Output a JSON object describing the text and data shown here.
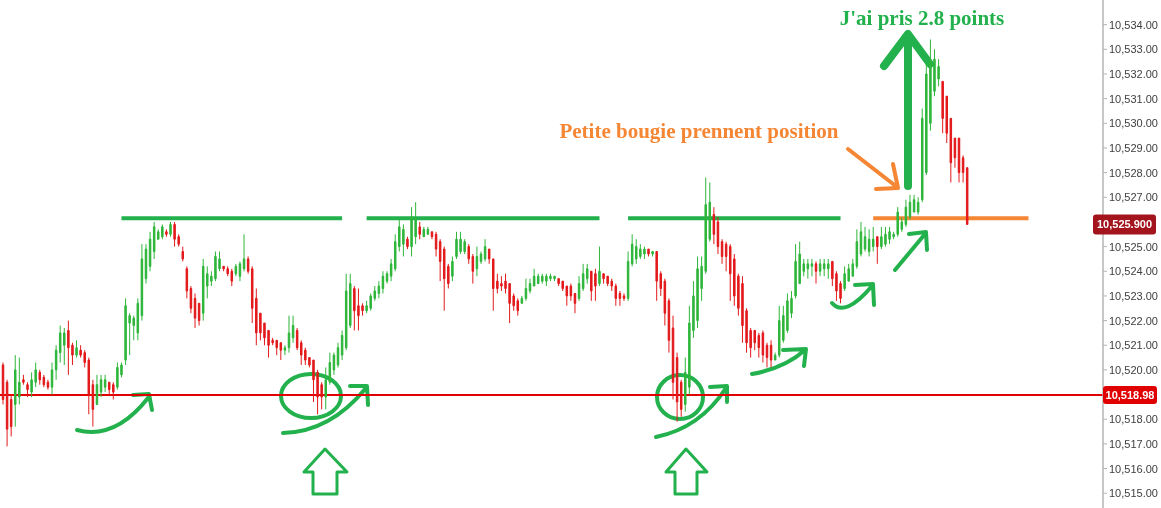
{
  "chart_data": {
    "type": "candlestick",
    "categories": [
      null,
      null,
      null,
      null,
      null,
      null,
      null,
      null,
      null,
      null,
      null,
      null,
      null,
      null,
      null,
      null,
      null,
      null,
      null,
      null,
      null,
      null,
      null,
      null,
      null,
      null,
      null,
      null,
      null,
      null,
      null,
      null,
      null,
      null,
      null,
      null,
      null,
      null,
      null,
      null,
      null,
      null,
      null,
      null,
      null,
      null,
      null,
      null,
      null,
      null,
      null,
      null,
      null,
      null,
      null,
      null,
      null,
      null,
      null,
      null,
      null,
      null,
      null,
      null,
      null,
      null,
      null,
      null,
      null,
      null,
      null,
      null,
      null,
      null,
      null,
      null,
      null,
      null,
      null,
      null,
      null,
      null,
      null,
      null,
      null,
      null,
      null,
      null,
      null,
      null,
      null,
      null,
      null,
      null,
      null,
      null,
      null,
      null,
      null,
      null,
      null,
      null,
      null,
      null,
      null,
      null,
      null,
      null,
      null,
      null,
      null,
      null,
      null,
      null,
      null,
      null,
      null,
      null,
      null,
      null,
      null,
      null,
      null,
      null,
      null,
      null,
      null,
      null,
      null,
      null,
      null,
      null,
      null,
      null,
      null,
      null,
      null,
      null,
      null,
      null,
      null,
      null,
      null,
      null,
      null,
      null,
      null,
      null,
      null,
      null,
      null,
      null,
      null,
      null,
      null,
      null,
      null,
      null,
      null,
      null,
      null,
      null,
      null,
      null,
      null,
      null,
      null,
      null,
      null,
      null,
      null,
      null,
      null,
      null,
      null,
      null,
      null,
      null,
      null,
      null,
      null,
      null,
      null,
      null,
      null,
      null,
      null,
      null,
      null,
      null,
      null,
      null,
      null,
      null,
      null,
      null,
      null,
      null,
      null,
      null,
      null,
      null,
      null,
      null,
      null,
      null,
      null,
      null,
      null,
      null,
      null,
      null,
      null,
      null,
      null,
      null,
      null,
      null,
      null,
      null,
      null,
      null,
      null,
      null,
      null,
      null,
      null,
      null,
      null,
      null,
      null,
      null,
      null,
      null,
      null,
      null,
      null,
      null,
      null,
      null,
      null,
      null,
      null,
      null,
      null,
      null,
      null,
      null,
      null,
      null,
      null,
      null,
      null,
      null,
      null,
      null,
      null,
      null,
      null,
      null,
      null,
      null,
      null,
      null,
      null,
      null,
      null,
      null,
      null,
      null
    ],
    "ohlc": [
      [
        10520.2,
        10520.3,
        10518.6,
        10518.8
      ],
      [
        10519.5,
        10519.6,
        10516.9,
        10517.6
      ],
      [
        10518.8,
        10519.0,
        10517.3,
        10517.7
      ],
      [
        10518.6,
        10520.6,
        10517.7,
        10520.0
      ],
      [
        10518.9,
        10520.5,
        10518.6,
        10519.5
      ],
      [
        10519.6,
        10519.8,
        10519.4,
        10519.5
      ],
      [
        10519.4,
        10519.5,
        10518.9,
        10519.2
      ],
      [
        10519.1,
        10519.9,
        10518.9,
        10519.6
      ],
      [
        10519.5,
        10520.3,
        10519.3,
        10520.0
      ],
      [
        10519.9,
        10520.0,
        10519.4,
        10519.6
      ],
      [
        10519.7,
        10519.8,
        10519.3,
        10519.4
      ],
      [
        10519.5,
        10519.6,
        10519.2,
        10519.3
      ],
      [
        10519.3,
        10520.3,
        10519.0,
        10520.0
      ],
      [
        10520.0,
        10521.0,
        10519.6,
        10520.8
      ],
      [
        10520.7,
        10521.8,
        10520.3,
        10521.5
      ],
      [
        10521.0,
        10521.7,
        10520.2,
        10521.5
      ],
      [
        10521.6,
        10522.0,
        10519.8,
        10520.9
      ],
      [
        10521.0,
        10521.1,
        10520.2,
        10520.6
      ],
      [
        10520.6,
        10521.2,
        10520.5,
        10520.9
      ],
      [
        10520.8,
        10521.0,
        10520.5,
        10520.6
      ],
      [
        10520.7,
        10520.8,
        10520.1,
        10520.3
      ],
      [
        10520.4,
        10520.5,
        10518.2,
        10519.0
      ],
      [
        10519.4,
        10519.6,
        10517.7,
        10518.4
      ],
      [
        10518.6,
        10519.8,
        10518.6,
        10519.4
      ],
      [
        10519.1,
        10519.8,
        10518.9,
        10519.6
      ],
      [
        10519.3,
        10519.8,
        10519.1,
        10519.6
      ],
      [
        10519.5,
        10519.5,
        10519.0,
        10519.2
      ],
      [
        10519.4,
        10519.5,
        10518.8,
        10519.1
      ],
      [
        10519.3,
        10520.3,
        10519.2,
        10520.1
      ],
      [
        10519.8,
        10520.3,
        10519.7,
        10520.2
      ],
      [
        10520.4,
        10522.9,
        10520.2,
        10522.6
      ],
      [
        10521.9,
        10522.3,
        10520.6,
        10522.2
      ],
      [
        10521.8,
        10522.2,
        10521.2,
        10522.1
      ],
      [
        10521.5,
        10522.9,
        10521.2,
        10522.7
      ],
      [
        10522.2,
        10525.1,
        10522.0,
        10524.5
      ],
      [
        10523.7,
        10525.1,
        10523.5,
        10524.9
      ],
      [
        10524.2,
        10525.6,
        10524.0,
        10525.3
      ],
      [
        10524.8,
        10526.0,
        10524.5,
        10525.8
      ],
      [
        10525.3,
        10525.7,
        10525.3,
        10525.6
      ],
      [
        10525.4,
        10525.9,
        10525.3,
        10525.8
      ],
      [
        10525.6,
        10525.7,
        10525.4,
        10525.5
      ],
      [
        10525.5,
        10526.0,
        10525.4,
        10525.9
      ],
      [
        10525.9,
        10526.0,
        10525.0,
        10525.3
      ],
      [
        10525.4,
        10525.5,
        10525.0,
        10525.1
      ],
      [
        10524.8,
        10525.0,
        10524.4,
        10524.5
      ],
      [
        10524.1,
        10524.2,
        10522.9,
        10523.2
      ],
      [
        10523.3,
        10523.4,
        10522.3,
        10522.5
      ],
      [
        10522.9,
        10523.1,
        10521.7,
        10522.1
      ],
      [
        10522.7,
        10522.7,
        10521.8,
        10522.0
      ],
      [
        10522.3,
        10524.5,
        10522.0,
        10524.2
      ],
      [
        10523.4,
        10524.2,
        10522.9,
        10523.9
      ],
      [
        10523.6,
        10524.0,
        10523.4,
        10523.8
      ],
      [
        10523.7,
        10524.8,
        10523.6,
        10524.6
      ],
      [
        10524.1,
        10524.8,
        10524.0,
        10524.5
      ],
      [
        10524.2,
        10524.2,
        10524.0,
        10524.1
      ],
      [
        10524.1,
        10524.2,
        10523.8,
        10523.9
      ],
      [
        10524.0,
        10524.1,
        10523.4,
        10523.6
      ],
      [
        10523.9,
        10524.3,
        10523.8,
        10524.2
      ],
      [
        10523.8,
        10524.4,
        10523.6,
        10524.3
      ],
      [
        10524.1,
        10525.5,
        10524.0,
        10524.5
      ],
      [
        10524.5,
        10524.6,
        10523.9,
        10524.0
      ],
      [
        10524.1,
        10524.2,
        10521.9,
        10522.5
      ],
      [
        10522.9,
        10523.3,
        10521.0,
        10521.5
      ],
      [
        10522.3,
        10522.3,
        10521.2,
        10521.5
      ],
      [
        10521.9,
        10521.9,
        10521.0,
        10521.3
      ],
      [
        10521.6,
        10521.6,
        10520.5,
        10521.0
      ],
      [
        10521.2,
        10521.3,
        10521.0,
        10521.1
      ],
      [
        10521.2,
        10521.2,
        10520.6,
        10520.9
      ],
      [
        10521.1,
        10521.1,
        10520.4,
        10520.8
      ],
      [
        10520.8,
        10521.0,
        10520.6,
        10520.9
      ],
      [
        10520.9,
        10522.2,
        10520.7,
        10521.5
      ],
      [
        10521.3,
        10522.2,
        10521.1,
        10521.8
      ],
      [
        10521.6,
        10521.7,
        10520.8,
        10520.9
      ],
      [
        10521.1,
        10521.2,
        10520.2,
        10520.6
      ],
      [
        10520.8,
        10520.9,
        10520.2,
        10520.4
      ],
      [
        10520.5,
        10520.5,
        10520.1,
        10520.2
      ],
      [
        10520.4,
        10520.4,
        10518.7,
        10519.6
      ],
      [
        10519.9,
        10520.0,
        10518.2,
        10518.9
      ],
      [
        10519.4,
        10519.5,
        10518.4,
        10518.9
      ],
      [
        10518.9,
        10520.1,
        10518.4,
        10519.6
      ],
      [
        10519.5,
        10520.7,
        10519.4,
        10520.3
      ],
      [
        10520.0,
        10520.7,
        10519.8,
        10520.6
      ],
      [
        10520.2,
        10521.1,
        10520.1,
        10520.9
      ],
      [
        10520.6,
        10521.6,
        10520.4,
        10521.4
      ],
      [
        10520.9,
        10523.9,
        10520.8,
        10523.2
      ],
      [
        10521.8,
        10523.9,
        10521.7,
        10523.5
      ],
      [
        10523.3,
        10523.4,
        10521.6,
        10522.4
      ],
      [
        10522.6,
        10523.3,
        10521.6,
        10522.2
      ],
      [
        10522.6,
        10522.7,
        10522.2,
        10522.4
      ],
      [
        10522.4,
        10522.8,
        10522.3,
        10522.6
      ],
      [
        10522.5,
        10523.1,
        10522.4,
        10523.0
      ],
      [
        10522.9,
        10523.4,
        10522.8,
        10523.2
      ],
      [
        10523.1,
        10523.6,
        10522.9,
        10523.4
      ],
      [
        10523.3,
        10524.0,
        10523.1,
        10523.8
      ],
      [
        10523.6,
        10524.0,
        10523.5,
        10523.9
      ],
      [
        10523.8,
        10524.5,
        10523.6,
        10524.3
      ],
      [
        10524.1,
        10525.5,
        10524.0,
        10525.2
      ],
      [
        10525.0,
        10526.1,
        10524.8,
        10525.8
      ],
      [
        10525.1,
        10525.9,
        10524.6,
        10525.7
      ],
      [
        10525.3,
        10525.4,
        10524.9,
        10525.0
      ],
      [
        10525.0,
        10526.6,
        10524.6,
        10526.2
      ],
      [
        10525.4,
        10526.8,
        10525.1,
        10526.1
      ],
      [
        10525.8,
        10526.0,
        10525.3,
        10525.5
      ],
      [
        10525.4,
        10525.8,
        10525.4,
        10525.7
      ],
      [
        10525.5,
        10525.8,
        10525.5,
        10525.7
      ],
      [
        10525.6,
        10525.6,
        10525.3,
        10525.4
      ],
      [
        10525.5,
        10525.6,
        10524.6,
        10524.9
      ],
      [
        10525.2,
        10525.3,
        10523.6,
        10524.4
      ],
      [
        10524.9,
        10525.0,
        10522.4,
        10523.7
      ],
      [
        10524.2,
        10524.3,
        10523.3,
        10523.5
      ],
      [
        10523.8,
        10524.6,
        10523.6,
        10524.4
      ],
      [
        10524.6,
        10525.6,
        10524.5,
        10525.3
      ],
      [
        10524.8,
        10525.6,
        10524.7,
        10525.3
      ],
      [
        10524.8,
        10525.3,
        10524.7,
        10525.2
      ],
      [
        10525.0,
        10525.1,
        10524.3,
        10524.5
      ],
      [
        10524.6,
        10524.7,
        10523.5,
        10524.0
      ],
      [
        10524.1,
        10525.0,
        10523.8,
        10524.6
      ],
      [
        10524.4,
        10524.8,
        10524.3,
        10524.7
      ],
      [
        10524.5,
        10525.3,
        10524.4,
        10525.0
      ],
      [
        10524.9,
        10524.9,
        10524.3,
        10524.5
      ],
      [
        10524.5,
        10524.5,
        10522.4,
        10523.3
      ],
      [
        10523.6,
        10523.9,
        10523.1,
        10523.3
      ],
      [
        10523.5,
        10523.8,
        10523.2,
        10523.4
      ],
      [
        10523.6,
        10523.9,
        10523.1,
        10523.3
      ],
      [
        10523.5,
        10523.5,
        10521.9,
        10522.7
      ],
      [
        10523.0,
        10523.1,
        10522.4,
        10522.6
      ],
      [
        10522.8,
        10522.9,
        10522.2,
        10522.4
      ],
      [
        10522.7,
        10523.0,
        10522.7,
        10522.9
      ],
      [
        10522.9,
        10523.7,
        10522.8,
        10523.3
      ],
      [
        10523.2,
        10523.7,
        10523.1,
        10523.5
      ],
      [
        10523.4,
        10524.1,
        10523.4,
        10523.8
      ],
      [
        10523.5,
        10523.9,
        10523.5,
        10523.8
      ],
      [
        10523.6,
        10523.9,
        10523.5,
        10523.8
      ],
      [
        10523.6,
        10523.9,
        10523.4,
        10523.8
      ],
      [
        10523.7,
        10523.9,
        10523.6,
        10523.8
      ],
      [
        10523.7,
        10523.8,
        10523.6,
        10523.8
      ],
      [
        10523.7,
        10523.7,
        10523.4,
        10523.5
      ],
      [
        10523.6,
        10523.6,
        10523.2,
        10523.3
      ],
      [
        10523.4,
        10523.4,
        10522.6,
        10523.0
      ],
      [
        10523.4,
        10523.5,
        10522.8,
        10523.0
      ],
      [
        10523.1,
        10523.1,
        10522.3,
        10522.7
      ],
      [
        10522.9,
        10523.8,
        10522.8,
        10523.5
      ],
      [
        10523.3,
        10524.3,
        10523.2,
        10523.9
      ],
      [
        10523.7,
        10524.3,
        10523.5,
        10524.1
      ],
      [
        10524.0,
        10524.0,
        10522.8,
        10523.2
      ],
      [
        10523.9,
        10524.1,
        10522.8,
        10523.4
      ],
      [
        10523.5,
        10525.0,
        10523.4,
        10524.0
      ],
      [
        10523.9,
        10523.9,
        10523.5,
        10523.7
      ],
      [
        10523.8,
        10523.8,
        10523.4,
        10523.5
      ],
      [
        10523.6,
        10523.7,
        10523.2,
        10523.4
      ],
      [
        10523.4,
        10523.5,
        10522.6,
        10522.9
      ],
      [
        10523.1,
        10523.2,
        10522.6,
        10522.9
      ],
      [
        10523.0,
        10523.1,
        10522.8,
        10522.9
      ],
      [
        10522.9,
        10524.8,
        10522.8,
        10524.4
      ],
      [
        10524.3,
        10525.5,
        10524.2,
        10525.1
      ],
      [
        10524.5,
        10525.3,
        10524.3,
        10525.0
      ],
      [
        10524.6,
        10525.1,
        10524.5,
        10524.9
      ],
      [
        10524.7,
        10525.0,
        10524.5,
        10524.9
      ],
      [
        10524.9,
        10524.9,
        10524.6,
        10524.7
      ],
      [
        10524.7,
        10524.8,
        10524.6,
        10524.8
      ],
      [
        10524.8,
        10524.8,
        10522.8,
        10523.6
      ],
      [
        10523.9,
        10524.0,
        10523.0,
        10523.3
      ],
      [
        10523.6,
        10523.7,
        10521.8,
        10522.3
      ],
      [
        10522.8,
        10522.9,
        10520.7,
        10521.2
      ],
      [
        10521.7,
        10522.2,
        10518.8,
        10519.5
      ],
      [
        10520.5,
        10520.7,
        10517.9,
        10518.7
      ],
      [
        10519.5,
        10519.6,
        10518.1,
        10518.4
      ],
      [
        10518.6,
        10520.5,
        10518.3,
        10519.9
      ],
      [
        10519.3,
        10522.6,
        10519.0,
        10521.9
      ],
      [
        10521.6,
        10523.6,
        10521.3,
        10523.0
      ],
      [
        10522.0,
        10524.6,
        10521.7,
        10524.1
      ],
      [
        10523.3,
        10524.6,
        10522.8,
        10524.2
      ],
      [
        10524.0,
        10527.8,
        10523.9,
        10526.7
      ],
      [
        10525.3,
        10527.6,
        10525.2,
        10526.8
      ],
      [
        10526.3,
        10526.6,
        10525.1,
        10525.5
      ],
      [
        10526.0,
        10526.2,
        10524.7,
        10525.0
      ],
      [
        10525.2,
        10525.3,
        10524.3,
        10524.6
      ],
      [
        10525.1,
        10525.2,
        10524.0,
        10524.6
      ],
      [
        10525.0,
        10525.1,
        10522.8,
        10523.9
      ],
      [
        10524.5,
        10524.7,
        10522.6,
        10523.0
      ],
      [
        10523.8,
        10523.9,
        10522.2,
        10522.5
      ],
      [
        10523.5,
        10523.8,
        10521.1,
        10521.8
      ],
      [
        10522.4,
        10522.5,
        10520.7,
        10521.1
      ],
      [
        10521.6,
        10521.7,
        10520.5,
        10520.9
      ],
      [
        10521.6,
        10521.6,
        10520.8,
        10521.1
      ],
      [
        10521.4,
        10521.5,
        10520.5,
        10520.9
      ],
      [
        10521.5,
        10521.6,
        10520.3,
        10520.6
      ],
      [
        10521.0,
        10521.1,
        10520.1,
        10520.5
      ],
      [
        10521.0,
        10521.2,
        10520.1,
        10520.4
      ],
      [
        10520.4,
        10520.7,
        10520.4,
        10520.6
      ],
      [
        10520.6,
        10522.6,
        10520.5,
        10522.0
      ],
      [
        10521.2,
        10522.6,
        10521.1,
        10522.2
      ],
      [
        10521.6,
        10523.1,
        10521.5,
        10522.8
      ],
      [
        10522.3,
        10523.2,
        10522.1,
        10522.9
      ],
      [
        10523.0,
        10525.1,
        10522.9,
        10524.4
      ],
      [
        10523.5,
        10525.2,
        10523.5,
        10524.7
      ],
      [
        10524.0,
        10524.5,
        10523.8,
        10524.3
      ],
      [
        10524.1,
        10524.5,
        10523.7,
        10524.3
      ],
      [
        10524.2,
        10524.5,
        10523.8,
        10524.3
      ],
      [
        10524.3,
        10524.4,
        10523.5,
        10524.0
      ],
      [
        10524.0,
        10524.5,
        10523.8,
        10524.3
      ],
      [
        10524.1,
        10524.5,
        10523.8,
        10524.3
      ],
      [
        10524.1,
        10524.5,
        10523.7,
        10524.3
      ],
      [
        10524.4,
        10524.4,
        10523.4,
        10523.7
      ],
      [
        10523.9,
        10524.0,
        10522.8,
        10523.2
      ],
      [
        10523.5,
        10523.6,
        10522.7,
        10522.9
      ],
      [
        10523.3,
        10524.2,
        10523.2,
        10523.9
      ],
      [
        10523.6,
        10524.3,
        10523.6,
        10524.1
      ],
      [
        10523.8,
        10524.5,
        10523.8,
        10524.3
      ],
      [
        10524.2,
        10525.7,
        10524.1,
        10525.2
      ],
      [
        10524.7,
        10526.0,
        10524.6,
        10525.6
      ],
      [
        10524.9,
        10525.8,
        10524.8,
        10525.4
      ],
      [
        10524.8,
        10525.7,
        10524.6,
        10525.3
      ],
      [
        10525.0,
        10525.8,
        10524.8,
        10525.3
      ],
      [
        10525.4,
        10525.4,
        10524.3,
        10525.0
      ],
      [
        10525.0,
        10525.8,
        10524.9,
        10525.4
      ],
      [
        10525.1,
        10525.8,
        10525.0,
        10525.5
      ],
      [
        10525.3,
        10525.8,
        10525.1,
        10525.6
      ],
      [
        10525.4,
        10525.6,
        10525.3,
        10525.5
      ],
      [
        10525.5,
        10526.6,
        10525.4,
        10526.4
      ],
      [
        10525.7,
        10526.2,
        10525.6,
        10526.0
      ],
      [
        10525.9,
        10526.9,
        10525.8,
        10526.6
      ],
      [
        10526.2,
        10527.1,
        10526.1,
        10526.8
      ],
      [
        10526.4,
        10527.1,
        10526.4,
        10526.9
      ],
      [
        10526.4,
        10527.0,
        10526.3,
        10526.8
      ],
      [
        10526.9,
        10530.6,
        10526.8,
        10530.2
      ],
      [
        10528.0,
        10532.4,
        10527.9,
        10532.0
      ],
      [
        10530.0,
        10533.4,
        10529.7,
        10532.5
      ],
      [
        10531.3,
        10533.0,
        10531.1,
        10532.6
      ],
      [
        10531.8,
        10532.6,
        10531.5,
        10532.3
      ],
      [
        10531.7,
        10531.7,
        10529.6,
        10530.2
      ],
      [
        10531.1,
        10531.1,
        10529.2,
        10529.6
      ],
      [
        10530.2,
        10530.2,
        10527.6,
        10528.4
      ],
      [
        10529.4,
        10529.4,
        10528.2,
        10528.6
      ],
      [
        10529.4,
        10529.4,
        10527.6,
        10528.0
      ],
      [
        10528.6,
        10528.7,
        10527.6,
        10528.0
      ],
      [
        10528.2,
        10528.2,
        10525.9,
        10525.9
      ],
      null,
      null,
      null,
      null,
      null,
      null,
      null,
      null,
      null,
      null,
      null,
      null,
      null,
      null,
      null,
      null,
      null,
      null,
      null,
      null,
      null,
      null,
      null,
      null,
      null,
      null,
      null,
      null,
      null,
      null,
      null,
      null,
      null
    ],
    "colors": [
      "#e31a1c",
      "#e31a1c",
      "#e31a1c",
      "#2fb63b",
      "#2fb63b",
      "#e31a1c",
      "#e31a1c",
      "#2fb63b",
      "#2fb63b",
      "#e31a1c",
      "#e31a1c",
      "#e31a1c",
      "#2fb63b",
      "#2fb63b",
      "#2fb63b",
      "#2fb63b",
      "#e31a1c",
      "#e31a1c",
      "#2fb63b",
      "#e31a1c",
      "#e31a1c",
      "#e31a1c",
      "#e31a1c",
      "#2fb63b",
      "#2fb63b",
      "#2fb63b",
      "#e31a1c",
      "#e31a1c",
      "#2fb63b",
      "#2fb63b",
      "#2fb63b",
      "#2fb63b",
      "#2fb63b",
      "#2fb63b",
      "#2fb63b",
      "#2fb63b",
      "#2fb63b",
      "#2fb63b",
      "#2fb63b",
      "#2fb63b",
      "#e31a1c",
      "#2fb63b",
      "#e31a1c",
      "#e31a1c",
      "#e31a1c",
      "#e31a1c",
      "#e31a1c",
      "#e31a1c",
      "#e31a1c",
      "#2fb63b",
      "#2fb63b",
      "#2fb63b",
      "#2fb63b",
      "#2fb63b",
      "#e31a1c",
      "#e31a1c",
      "#e31a1c",
      "#2fb63b",
      "#2fb63b",
      "#2fb63b",
      "#e31a1c",
      "#e31a1c",
      "#e31a1c",
      "#e31a1c",
      "#e31a1c",
      "#e31a1c",
      "#e31a1c",
      "#e31a1c",
      "#e31a1c",
      "#2fb63b",
      "#2fb63b",
      "#2fb63b",
      "#e31a1c",
      "#e31a1c",
      "#e31a1c",
      "#e31a1c",
      "#e31a1c",
      "#e31a1c",
      "#e31a1c",
      "#2fb63b",
      "#2fb63b",
      "#2fb63b",
      "#2fb63b",
      "#2fb63b",
      "#2fb63b",
      "#2fb63b",
      "#e31a1c",
      "#e31a1c",
      "#e31a1c",
      "#2fb63b",
      "#2fb63b",
      "#2fb63b",
      "#2fb63b",
      "#2fb63b",
      "#2fb63b",
      "#2fb63b",
      "#2fb63b",
      "#2fb63b",
      "#2fb63b",
      "#e31a1c",
      "#2fb63b",
      "#2fb63b",
      "#e31a1c",
      "#2fb63b",
      "#2fb63b",
      "#e31a1c",
      "#e31a1c",
      "#e31a1c",
      "#e31a1c",
      "#e31a1c",
      "#2fb63b",
      "#2fb63b",
      "#2fb63b",
      "#2fb63b",
      "#e31a1c",
      "#e31a1c",
      "#2fb63b",
      "#2fb63b",
      "#2fb63b",
      "#e31a1c",
      "#e31a1c",
      "#e31a1c",
      "#e31a1c",
      "#e31a1c",
      "#e31a1c",
      "#e31a1c",
      "#e31a1c",
      "#2fb63b",
      "#2fb63b",
      "#2fb63b",
      "#2fb63b",
      "#2fb63b",
      "#2fb63b",
      "#2fb63b",
      "#2fb63b",
      "#2fb63b",
      "#e31a1c",
      "#e31a1c",
      "#e31a1c",
      "#e31a1c",
      "#e31a1c",
      "#2fb63b",
      "#2fb63b",
      "#2fb63b",
      "#e31a1c",
      "#e31a1c",
      "#2fb63b",
      "#e31a1c",
      "#e31a1c",
      "#e31a1c",
      "#e31a1c",
      "#e31a1c",
      "#e31a1c",
      "#2fb63b",
      "#2fb63b",
      "#2fb63b",
      "#2fb63b",
      "#2fb63b",
      "#e31a1c",
      "#2fb63b",
      "#e31a1c",
      "#e31a1c",
      "#e31a1c",
      "#e31a1c",
      "#e31a1c",
      "#e31a1c",
      "#e31a1c",
      "#2fb63b",
      "#2fb63b",
      "#2fb63b",
      "#2fb63b",
      "#2fb63b",
      "#2fb63b",
      "#2fb63b",
      "#e31a1c",
      "#e31a1c",
      "#e31a1c",
      "#e31a1c",
      "#e31a1c",
      "#e31a1c",
      "#e31a1c",
      "#e31a1c",
      "#e31a1c",
      "#e31a1c",
      "#e31a1c",
      "#e31a1c",
      "#e31a1c",
      "#e31a1c",
      "#e31a1c",
      "#2fb63b",
      "#2fb63b",
      "#2fb63b",
      "#2fb63b",
      "#2fb63b",
      "#2fb63b",
      "#2fb63b",
      "#2fb63b",
      "#2fb63b",
      "#2fb63b",
      "#e31a1c",
      "#2fb63b",
      "#2fb63b",
      "#2fb63b",
      "#e31a1c",
      "#e31a1c",
      "#e31a1c",
      "#2fb63b",
      "#2fb63b",
      "#2fb63b",
      "#2fb63b",
      "#2fb63b",
      "#2fb63b",
      "#2fb63b",
      "#2fb63b",
      "#e31a1c",
      "#2fb63b",
      "#2fb63b",
      "#2fb63b",
      "#2fb63b",
      "#2fb63b",
      "#2fb63b",
      "#2fb63b",
      "#2fb63b",
      "#2fb63b",
      "#2fb63b",
      "#2fb63b",
      "#2fb63b",
      "#2fb63b",
      "#2fb63b",
      "#2fb63b",
      "#e31a1c",
      "#e31a1c",
      "#e31a1c",
      "#e31a1c",
      "#e31a1c",
      "#e31a1c",
      "#e31a1c",
      null,
      null,
      null,
      null,
      null,
      null,
      null,
      null,
      null,
      null,
      null,
      null,
      null,
      null,
      null,
      null,
      null,
      null,
      null,
      null,
      null,
      null,
      null,
      null,
      null,
      null,
      null,
      null,
      null,
      null,
      null,
      null,
      null
    ],
    "series": [
      {
        "type": "line",
        "color": "#22b14c",
        "values": [
          null,
          null,
          null,
          null,
          null,
          null,
          null,
          null,
          null,
          null,
          null,
          null,
          null,
          null,
          null,
          null,
          null,
          null,
          null,
          null,
          null,
          null,
          null,
          null,
          null,
          null,
          null,
          null,
          null,
          10526.15,
          10526.15,
          10526.15,
          10526.15,
          10526.15,
          10526.15,
          10526.15,
          10526.15,
          10526.15,
          10526.15,
          10526.15,
          10526.15,
          10526.15,
          10526.15,
          10526.15,
          10526.15,
          10526.15,
          10526.15,
          10526.15,
          10526.15,
          10526.15,
          10526.15,
          10526.15,
          10526.15,
          10526.15,
          10526.15,
          10526.15,
          10526.15,
          10526.15,
          10526.15,
          10526.15,
          10526.15,
          10526.15,
          10526.15,
          10526.15,
          10526.15,
          10526.15,
          10526.15,
          10526.15,
          10526.15,
          10526.15,
          10526.15,
          10526.15,
          10526.15,
          10526.15,
          10526.15,
          10526.15,
          10526.15,
          10526.15,
          10526.15,
          10526.15,
          10526.15,
          10526.15,
          10526.15,
          10526.15,
          null,
          null,
          null,
          null,
          null,
          10526.15,
          10526.15,
          10526.15,
          10526.15,
          10526.15,
          10526.15,
          10526.15,
          10526.15,
          10526.15,
          10526.15,
          10526.15,
          10526.15,
          10526.15,
          10526.15,
          10526.15,
          10526.15,
          10526.15,
          10526.15,
          10526.15,
          10526.15,
          10526.15,
          10526.15,
          10526.15,
          10526.15,
          10526.15,
          10526.15,
          10526.15,
          10526.15,
          10526.15,
          10526.15,
          10526.15,
          10526.15,
          10526.15,
          10526.15,
          10526.15,
          10526.15,
          10526.15,
          10526.15,
          10526.15,
          10526.15,
          10526.15,
          10526.15,
          10526.15,
          10526.15,
          10526.15,
          10526.15,
          10526.15,
          10526.15,
          10526.15,
          10526.15,
          10526.15,
          10526.15,
          10526.15,
          10526.15,
          10526.15,
          10526.15,
          10526.15,
          10526.15,
          null,
          null,
          null,
          null,
          null,
          null,
          10526.15,
          10526.15,
          10526.15,
          10526.15,
          10526.15,
          10526.15,
          10526.15,
          10526.15,
          10526.15,
          10526.15,
          10526.15,
          10526.15,
          10526.15,
          10526.15,
          10526.15,
          10526.15,
          10526.15,
          10526.15,
          10526.15,
          10526.15,
          10526.15,
          10526.15,
          10526.15,
          10526.15,
          10526.15,
          10526.15,
          10526.15,
          10526.15,
          10526.15,
          10526.15,
          10526.15,
          10526.15,
          10526.15,
          10526.15,
          10526.15,
          10526.15,
          10526.15,
          10526.15,
          10526.15,
          10526.15,
          10526.15,
          10526.15,
          10526.15,
          10526.15,
          10526.15,
          10526.15,
          10526.15,
          10526.15,
          10526.15,
          10526.15,
          10526.15,
          10526.15,
          10526.15,
          null,
          null,
          null,
          null,
          null,
          null,
          null,
          null,
          null,
          null,
          null,
          null,
          null,
          null,
          null,
          null,
          null,
          null,
          null,
          null,
          null,
          null,
          null,
          null,
          null,
          null,
          null,
          null,
          null,
          null,
          null,
          null,
          null,
          null,
          null,
          null,
          null,
          null,
          null,
          null,
          null,
          null,
          null,
          null,
          null,
          null,
          null,
          null,
          null,
          null,
          null,
          null,
          null,
          null,
          null,
          null,
          null,
          null,
          null,
          null,
          null,
          null,
          null,
          null
        ]
      },
      {
        "type": "line",
        "color": "#f58634",
        "values": [
          null,
          null,
          null,
          null,
          null,
          null,
          null,
          null,
          null,
          null,
          null,
          null,
          null,
          null,
          null,
          null,
          null,
          null,
          null,
          null,
          null,
          null,
          null,
          null,
          null,
          null,
          null,
          null,
          null,
          null,
          null,
          null,
          null,
          null,
          null,
          null,
          null,
          null,
          null,
          null,
          null,
          null,
          null,
          null,
          null,
          null,
          null,
          null,
          null,
          null,
          null,
          null,
          null,
          null,
          null,
          null,
          null,
          null,
          null,
          null,
          null,
          null,
          null,
          null,
          null,
          null,
          null,
          null,
          null,
          null,
          null,
          null,
          null,
          null,
          null,
          null,
          null,
          null,
          null,
          null,
          null,
          null,
          null,
          null,
          null,
          null,
          null,
          null,
          null,
          null,
          null,
          null,
          null,
          null,
          null,
          null,
          null,
          null,
          null,
          null,
          null,
          null,
          null,
          null,
          null,
          null,
          null,
          null,
          null,
          null,
          null,
          null,
          null,
          null,
          null,
          null,
          null,
          null,
          null,
          null,
          null,
          null,
          null,
          null,
          null,
          null,
          null,
          null,
          null,
          null,
          null,
          null,
          null,
          null,
          null,
          null,
          null,
          null,
          null,
          null,
          null,
          null,
          null,
          null,
          null,
          null,
          null,
          null,
          null,
          null,
          null,
          null,
          null,
          null,
          null,
          null,
          null,
          null,
          null,
          null,
          null,
          null,
          null,
          null,
          null,
          null,
          null,
          null,
          null,
          null,
          null,
          null,
          null,
          null,
          null,
          null,
          null,
          null,
          null,
          null,
          null,
          null,
          null,
          null,
          null,
          null,
          null,
          null,
          null,
          null,
          null,
          null,
          null,
          null,
          null,
          null,
          null,
          null,
          null,
          null,
          null,
          null,
          null,
          null,
          null,
          null,
          null,
          null,
          null,
          null,
          null,
          null,
          null,
          10526.15,
          10526.15,
          10526.15,
          10526.15,
          10526.15,
          10526.15,
          10526.15,
          10526.15,
          10526.15,
          10526.15,
          10526.15,
          10526.15,
          10526.15,
          10526.15,
          10526.15,
          10526.15,
          10526.15,
          10526.15,
          10526.15,
          10526.15,
          10526.15,
          10526.15,
          10526.15,
          10526.15,
          10526.15,
          10526.15,
          10526.15,
          10526.15,
          10526.15,
          10526.15,
          10526.15,
          10526.15,
          10526.15,
          10526.15,
          10526.15,
          10526.15,
          10526.15,
          10526.15,
          10526.15,
          null,
          null,
          null,
          null,
          null,
          null,
          null,
          null,
          null,
          null,
          null,
          null,
          null,
          null,
          null,
          null,
          null,
          null
        ]
      }
    ],
    "ylim": [
      10514.4,
      10535.0
    ],
    "yticks": [
      {
        "value": 10515,
        "label": "10,515.00"
      },
      {
        "value": 10516,
        "label": "10,516.00"
      },
      {
        "value": 10517,
        "label": "10,517.00"
      },
      {
        "value": 10518,
        "label": "10,518.00"
      },
      {
        "value": 10520,
        "label": "10,520.00"
      },
      {
        "value": 10521,
        "label": "10,521.00"
      },
      {
        "value": 10522,
        "label": "10,522.00"
      },
      {
        "value": 10523,
        "label": "10,523.00"
      },
      {
        "value": 10524,
        "label": "10,524.00"
      },
      {
        "value": 10525,
        "label": "10,525.00"
      },
      {
        "value": 10527,
        "label": "10,527.00"
      },
      {
        "value": 10528,
        "label": "10,528.00"
      },
      {
        "value": 10529,
        "label": "10,529.00"
      },
      {
        "value": 10530,
        "label": "10,530.00"
      },
      {
        "value": 10531,
        "label": "10,531.00"
      },
      {
        "value": 10532,
        "label": "10,532.00"
      },
      {
        "value": 10533,
        "label": "10,533.00"
      },
      {
        "value": 10534,
        "label": "10,534.00"
      }
    ],
    "ref_lines": [
      {
        "axis": "y",
        "value": 10518.98,
        "label": "10,518.98",
        "color": "#e00000"
      }
    ],
    "annotations": [
      "J'ai pris 2.8 points",
      "Petite bougie prennent position",
      "10,525.900"
    ]
  }
}
